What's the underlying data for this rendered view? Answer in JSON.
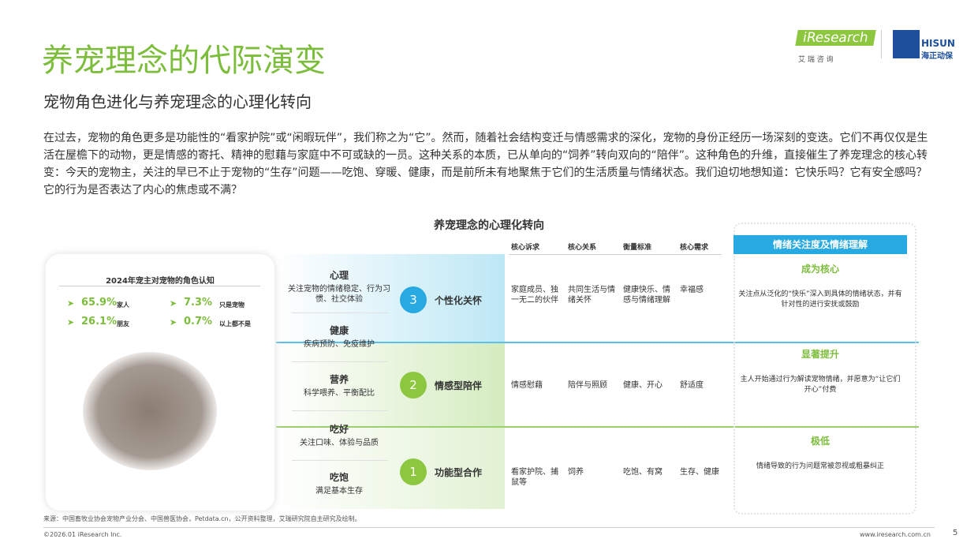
{
  "header": {
    "title": "养宠理念的代际演变",
    "subtitle": "宠物角色进化与养宠理念的心理化转向",
    "logo": {
      "brand": "iResearch",
      "brand_cn": "艾 瑞 咨 询",
      "partner": "HISUN",
      "partner_cn": "海正动保"
    }
  },
  "intro": "在过去，宠物的角色更多是功能性的“看家护院”或“闲暇玩伴”，我们称之为“它”。然而，随着社会结构变迁与情感需求的深化，宠物的身份正经历一场深刻的变迭。它们不再仅仅是生活在屋檐下的动物，更是情感的寄托、精神的慰藉与家庭中不可或缺的一员。这种关系的本质，已从单向的“饲养”转向双向的“陪伴”。这种角色的升维，直接催生了养宠理念的核心转变：今天的宠物主，关注的早已不止于宠物的“生存”问题——吃饱、穿暖、健康，而是前所未有地聚焦于它们的生活质量与情绪状态。我们迫切地想知道：它快乐吗？它有安全感吗？它的行为是否表达了内心的焦虑或不满？",
  "diagram": {
    "title": "养宠理念的心理化转向",
    "survey": {
      "title": "2024年宠主对宠物的角色认知",
      "items": [
        {
          "value": "65.9%",
          "label": "家人"
        },
        {
          "value": "7.3%",
          "label": "只是宠物"
        },
        {
          "value": "26.1%",
          "label": "朋友"
        },
        {
          "value": "0.7%",
          "label": "以上都不是"
        }
      ]
    },
    "needs": [
      {
        "name": "心理",
        "desc": "关注宠物的情绪稳定、行为习惯、社交体验"
      },
      {
        "name": "健康",
        "desc": "疾病预防、免疫维护"
      },
      {
        "name": "营养",
        "desc": "科学喂养、平衡配比"
      },
      {
        "name": "吃好",
        "desc": "关注口味、体验与品质"
      },
      {
        "name": "吃饱",
        "desc": "满足基本生存"
      }
    ],
    "levels": [
      {
        "num": "3",
        "name": "个性化关怀"
      },
      {
        "num": "2",
        "name": "情感型陪伴"
      },
      {
        "num": "1",
        "name": "功能型合作"
      }
    ],
    "table": {
      "headers": [
        "核心诉求",
        "核心关系",
        "衡量标准",
        "核心需求"
      ],
      "rows": [
        [
          "家庭成员、独一无二的伙伴",
          "共同生活与情绪关怀",
          "健康快乐、情感与情绪理解",
          "幸福感"
        ],
        [
          "情感慰藉",
          "陪伴与照顾",
          "健康、开心",
          "舒适度"
        ],
        [
          "看家护院、捕鼠等",
          "饲养",
          "吃饱、有窝",
          "生存、健康"
        ]
      ]
    },
    "emotion": {
      "header": "情绪关注度及情绪理解",
      "items": [
        {
          "level": "成为核心",
          "desc": "关注点从泛化的“快乐”深入到具体的情绪状态，并有针对性的进行安抚或鼓励"
        },
        {
          "level": "显著提升",
          "desc": "主人开始通过行为解读宠物情绪，并愿意为“让它们开心”付费"
        },
        {
          "level": "极低",
          "desc": "情绪导致的行为问题常被忽视或粗暴纠正"
        }
      ]
    }
  },
  "footer": {
    "source": "来源：中国畜牧业协会宠物产业分会、中国兽医协会，Petdata.cn，公开资料整理，艾瑞研究院自主研究及绘制。",
    "copyright": "©2026.01 iResearch Inc.",
    "website": "www.iresearch.com.cn",
    "page": "5"
  }
}
